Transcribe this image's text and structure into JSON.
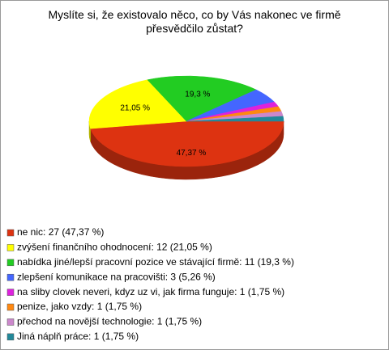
{
  "chart_data": {
    "type": "pie",
    "title": "Myslíte si, že existovalo něco, co by Vás nakonec ve firmě přesvědčilo zůstat?",
    "categories": [
      "ne nic: 27 (47,37 %)",
      "zvýšení finančního ohodnocení: 12 (21,05 %)",
      "nabídka jiné/lepší pracovní pozice ve stávající firmě: 11 (19,3 %)",
      "zlepšení komunikace na pracovišti: 3 (5,26 %)",
      "na sliby clovek neveri, kdyz uz vi, jak firma funguje: 1 (1,75 %)",
      "penize, jako vzdy: 1 (1,75 %)",
      "přechod na novější technologie: 1 (1,75 %)",
      "Jiná náplň práce: 1 (1,75 %)"
    ],
    "values": [
      47.37,
      21.05,
      19.3,
      5.26,
      1.75,
      1.75,
      1.75,
      1.75
    ],
    "value_labels": [
      "47,37 %",
      "21,05 %",
      "19,3 %",
      null,
      null,
      null,
      null,
      null
    ],
    "colors": [
      "#dd3311",
      "#ffff00",
      "#22cc22",
      "#4466ff",
      "#dd22dd",
      "#ff8811",
      "#cc88cc",
      "#228899"
    ],
    "legend": "bottom-left"
  }
}
